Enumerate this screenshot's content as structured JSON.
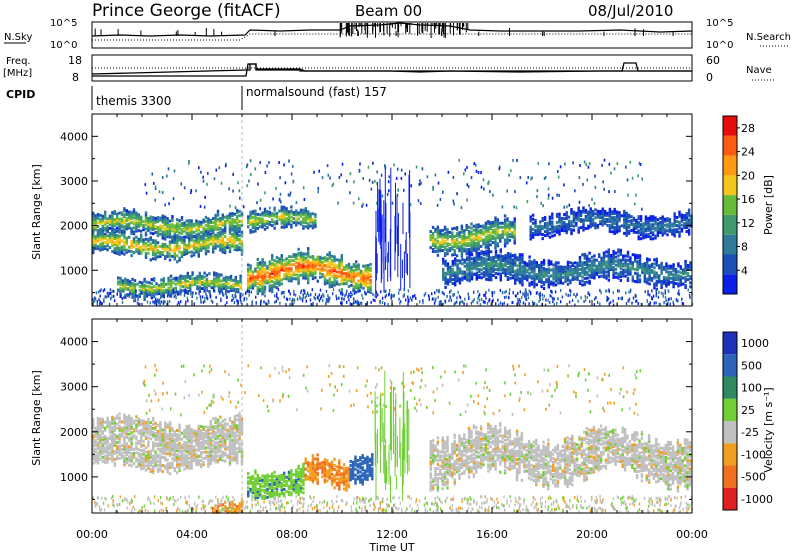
{
  "header": {
    "station": "Prince George (fitACF)",
    "beam": "Beam 00",
    "date": "08/Jul/2010"
  },
  "top_panels": {
    "nsky_label": "N.Sky",
    "nsky_ticks": [
      "10^5",
      "10^0"
    ],
    "nsearch_label": "N.Search",
    "nsearch_ticks": [
      "10^5",
      "10^0"
    ],
    "freq_label": "Freq.",
    "freq_unit": "[MHz]",
    "freq_ticks": [
      "18",
      "8"
    ],
    "nave_label": "Nave",
    "nave_ticks": [
      "60",
      "0"
    ],
    "cpid_label": "CPID",
    "cpid_segments": [
      {
        "label": "themis 3300",
        "start_hour": 0,
        "end_hour": 6.0
      },
      {
        "label": "normalsound (fast) 157",
        "start_hour": 6.0,
        "end_hour": 24
      }
    ]
  },
  "chart_data": [
    {
      "type": "heatmap",
      "title": "",
      "ylabel": "Slant Range [km]",
      "xlabel": "",
      "xlim": [
        0,
        24
      ],
      "ylim": [
        200,
        4500
      ],
      "yticks": [
        "1000",
        "2000",
        "3000",
        "4000"
      ],
      "colorbar": {
        "label": "Power [dB]",
        "ticks": [
          "4",
          "8",
          "12",
          "16",
          "20",
          "24",
          "28"
        ],
        "range": [
          0,
          30
        ],
        "colors": [
          "#0a1fe6",
          "#1b4fb8",
          "#2d7a9a",
          "#3f9c6a",
          "#66bb3a",
          "#f2c61a",
          "#ff9a10",
          "#ff5a10",
          "#e80d0d"
        ]
      },
      "echo_bands": [
        {
          "start_hour": 0.0,
          "end_hour": 6.0,
          "range_km": 2050,
          "width_km": 250,
          "peak_dB": 18
        },
        {
          "start_hour": 0.0,
          "end_hour": 6.0,
          "range_km": 1600,
          "width_km": 250,
          "peak_dB": 20
        },
        {
          "start_hour": 1.0,
          "end_hour": 6.0,
          "range_km": 700,
          "width_km": 200,
          "peak_dB": 18
        },
        {
          "start_hour": 6.2,
          "end_hour": 11.2,
          "range_km": 1000,
          "width_km": 350,
          "peak_dB": 26
        },
        {
          "start_hour": 6.2,
          "end_hour": 9.0,
          "range_km": 2150,
          "width_km": 200,
          "peak_dB": 18
        },
        {
          "start_hour": 13.5,
          "end_hour": 17.0,
          "range_km": 1800,
          "width_km": 300,
          "peak_dB": 18
        },
        {
          "start_hour": 14.0,
          "end_hour": 24.0,
          "range_km": 1050,
          "width_km": 300,
          "peak_dB": 10
        },
        {
          "start_hour": 17.5,
          "end_hour": 24.0,
          "range_km": 2100,
          "width_km": 250,
          "peak_dB": 8
        }
      ]
    },
    {
      "type": "heatmap",
      "title": "",
      "ylabel": "Slant Range [km]",
      "xlabel": "Time UT",
      "xlim": [
        0,
        24
      ],
      "ylim": [
        200,
        4500
      ],
      "yticks": [
        "1000",
        "2000",
        "3000",
        "4000"
      ],
      "xticks": [
        "00:00",
        "04:00",
        "08:00",
        "12:00",
        "16:00",
        "20:00",
        "00:00"
      ],
      "colorbar": {
        "label": "Velocity [m s⁻¹]",
        "ticks": [
          "1000",
          "500",
          "100",
          "25",
          "-25",
          "-100",
          "-500",
          "-1000"
        ],
        "colors": [
          "#1e2fb8",
          "#2b64b8",
          "#2f8a5f",
          "#71cf35",
          "#c0c0c0",
          "#f0a020",
          "#f07020",
          "#e02020"
        ]
      },
      "echo_bands": [
        {
          "start_hour": 0.0,
          "end_hour": 6.0,
          "range_km": 2000,
          "width_km": 300,
          "velocity": 0
        },
        {
          "start_hour": 0.0,
          "end_hour": 6.0,
          "range_km": 1500,
          "width_km": 250,
          "velocity": 0
        },
        {
          "start_hour": 6.2,
          "end_hour": 8.5,
          "range_km": 950,
          "width_km": 300,
          "velocity": 80
        },
        {
          "start_hour": 8.5,
          "end_hour": 10.3,
          "range_km": 1100,
          "width_km": 300,
          "velocity": -100
        },
        {
          "start_hour": 10.3,
          "end_hour": 11.3,
          "range_km": 1300,
          "width_km": 300,
          "velocity": 200
        },
        {
          "start_hour": 4.8,
          "end_hour": 6.0,
          "range_km": 350,
          "width_km": 150,
          "velocity": -100
        },
        {
          "start_hour": 13.5,
          "end_hour": 24.0,
          "range_km": 1500,
          "width_km": 500,
          "velocity": 0
        }
      ]
    }
  ]
}
